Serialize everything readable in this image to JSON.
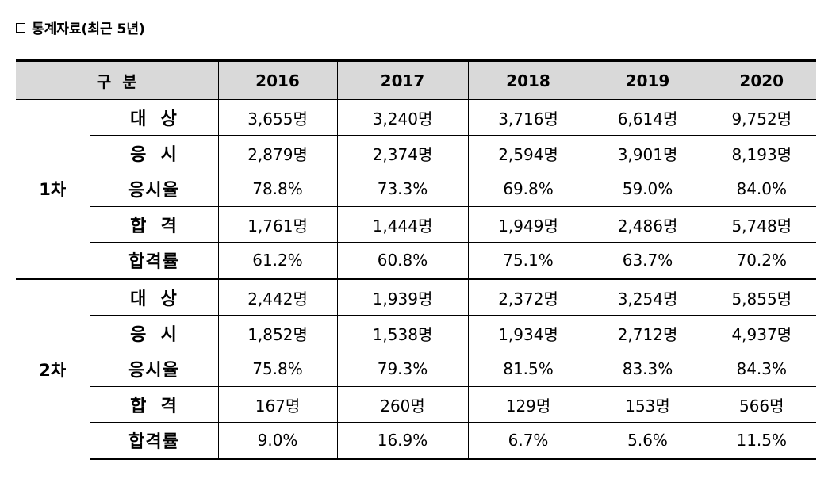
{
  "title": "통계자료(최근 5년)",
  "header": {
    "category": "구  분",
    "years": [
      "2016",
      "2017",
      "2018",
      "2019",
      "2020"
    ]
  },
  "sections": [
    {
      "label": "1차",
      "rows": [
        {
          "label": "대  상",
          "values": [
            "3,655명",
            "3,240명",
            "3,716명",
            "6,614명",
            "9,752명"
          ]
        },
        {
          "label": "응  시",
          "values": [
            "2,879명",
            "2,374명",
            "2,594명",
            "3,901명",
            "8,193명"
          ]
        },
        {
          "label": "응시율",
          "values": [
            "78.8%",
            "73.3%",
            "69.8%",
            "59.0%",
            "84.0%"
          ]
        },
        {
          "label": "합  격",
          "values": [
            "1,761명",
            "1,444명",
            "1,949명",
            "2,486명",
            "5,748명"
          ]
        },
        {
          "label": "합격률",
          "values": [
            "61.2%",
            "60.8%",
            "75.1%",
            "63.7%",
            "70.2%"
          ]
        }
      ]
    },
    {
      "label": "2차",
      "rows": [
        {
          "label": "대  상",
          "values": [
            "2,442명",
            "1,939명",
            "2,372명",
            "3,254명",
            "5,855명"
          ]
        },
        {
          "label": "응  시",
          "values": [
            "1,852명",
            "1,538명",
            "1,934명",
            "2,712명",
            "4,937명"
          ]
        },
        {
          "label": "응시율",
          "values": [
            "75.8%",
            "79.3%",
            "81.5%",
            "83.3%",
            "84.3%"
          ]
        },
        {
          "label": "합  격",
          "values": [
            "167명",
            "260명",
            "129명",
            "153명",
            "566명"
          ]
        },
        {
          "label": "합격률",
          "values": [
            "9.0%",
            "16.9%",
            "6.7%",
            "5.6%",
            "11.5%"
          ]
        }
      ]
    }
  ]
}
